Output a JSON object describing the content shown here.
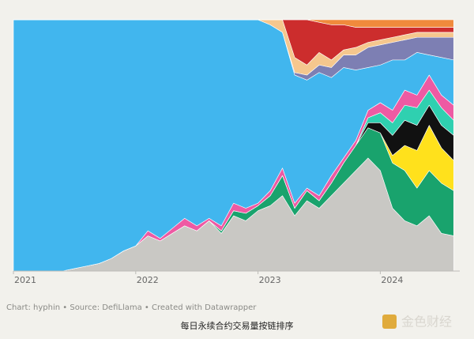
{
  "chart_data": {
    "type": "area",
    "stacked": true,
    "x": [
      2021.0,
      2021.1,
      2021.2,
      2021.3,
      2021.4,
      2021.5,
      2021.6,
      2021.7,
      2021.8,
      2021.9,
      2022.0,
      2022.1,
      2022.2,
      2022.3,
      2022.4,
      2022.5,
      2022.6,
      2022.7,
      2022.8,
      2022.9,
      2023.0,
      2023.1,
      2023.2,
      2023.3,
      2023.4,
      2023.5,
      2023.6,
      2023.7,
      2023.8,
      2023.9,
      2024.0,
      2024.1,
      2024.2,
      2024.3,
      2024.4,
      2024.5,
      2024.6
    ],
    "xlim": [
      2021,
      2024.65
    ],
    "xticks": [
      2021,
      2022,
      2023,
      2024
    ],
    "ylim": [
      0,
      100
    ],
    "series": [
      {
        "color": "#c9c8c4",
        "values": [
          0,
          0,
          0,
          0,
          0,
          1,
          2,
          3,
          5,
          8,
          10,
          14,
          12,
          15,
          18,
          16,
          20,
          15,
          22,
          20,
          24,
          26,
          30,
          22,
          28,
          25,
          30,
          35,
          40,
          45,
          40,
          25,
          20,
          18,
          22,
          15,
          14
        ]
      },
      {
        "color": "#19a36d",
        "values": [
          0,
          0,
          0,
          0,
          0,
          0,
          0,
          0,
          0,
          0,
          0,
          0,
          0,
          0,
          0,
          0,
          0,
          1,
          2,
          3,
          2,
          4,
          8,
          3,
          4,
          3,
          5,
          8,
          10,
          12,
          15,
          18,
          20,
          15,
          18,
          20,
          18
        ]
      },
      {
        "color": "#ffe11c",
        "values": [
          0,
          0,
          0,
          0,
          0,
          0,
          0,
          0,
          0,
          0,
          0,
          0,
          0,
          0,
          0,
          0,
          0,
          0,
          0,
          0,
          0,
          0,
          0,
          0,
          0,
          0,
          0,
          0,
          0,
          0,
          0,
          3,
          10,
          15,
          18,
          14,
          12
        ]
      },
      {
        "color": "#111111",
        "values": [
          0,
          0,
          0,
          0,
          0,
          0,
          0,
          0,
          0,
          0,
          0,
          0,
          0,
          0,
          0,
          0,
          0,
          0,
          0,
          0,
          0,
          0,
          0,
          0,
          0,
          0,
          0,
          0,
          0,
          2,
          4,
          8,
          10,
          10,
          8,
          9,
          10
        ]
      },
      {
        "color": "#2fd0b0",
        "values": [
          0,
          0,
          0,
          0,
          0,
          0,
          0,
          0,
          0,
          0,
          0,
          0,
          0,
          0,
          0,
          0,
          0,
          0,
          0,
          0,
          0,
          0,
          0,
          0,
          0,
          0,
          0,
          0,
          0,
          2,
          4,
          5,
          6,
          7,
          6,
          7,
          6
        ]
      },
      {
        "color": "#ee5aa3",
        "values": [
          0,
          0,
          0,
          0,
          0,
          0,
          0,
          0,
          0,
          0,
          0,
          2,
          1,
          2,
          3,
          2,
          1,
          2,
          3,
          2,
          1,
          2,
          3,
          2,
          1,
          2,
          3,
          2,
          2,
          3,
          4,
          5,
          6,
          5,
          6,
          5,
          6
        ]
      },
      {
        "color": "#41b6ee",
        "values": [
          100,
          100,
          100,
          100,
          100,
          99,
          98,
          97,
          95,
          92,
          90,
          84,
          87,
          83,
          79,
          82,
          79,
          82,
          73,
          75,
          73,
          66,
          54,
          51,
          43,
          49,
          39,
          36,
          28,
          17,
          15,
          20,
          12,
          17,
          8,
          15,
          18
        ]
      },
      {
        "color": "#7d7fb3",
        "values": [
          0,
          0,
          0,
          0,
          0,
          0,
          0,
          0,
          0,
          0,
          0,
          0,
          0,
          0,
          0,
          0,
          0,
          0,
          0,
          0,
          0,
          0,
          0,
          1,
          2,
          3,
          4,
          5,
          6,
          8,
          8,
          7,
          8,
          6,
          7,
          8,
          9
        ]
      },
      {
        "color": "#f5c78e",
        "values": [
          0,
          0,
          0,
          0,
          0,
          0,
          0,
          0,
          0,
          0,
          0,
          0,
          0,
          0,
          0,
          0,
          0,
          0,
          0,
          0,
          0,
          2,
          5,
          6,
          4,
          5,
          3,
          2,
          3,
          2,
          2,
          2,
          2,
          2,
          2,
          2,
          2
        ]
      },
      {
        "color": "#cc2d2d",
        "values": [
          0,
          0,
          0,
          0,
          0,
          0,
          0,
          0,
          0,
          0,
          0,
          0,
          0,
          0,
          0,
          0,
          0,
          0,
          0,
          0,
          0,
          0,
          0,
          15,
          18,
          12,
          14,
          10,
          8,
          6,
          5,
          4,
          3,
          2,
          2,
          2,
          2
        ]
      },
      {
        "color": "#f08a3c",
        "values": [
          0,
          0,
          0,
          0,
          0,
          0,
          0,
          0,
          0,
          0,
          0,
          0,
          0,
          0,
          0,
          0,
          0,
          0,
          0,
          0,
          0,
          0,
          0,
          0,
          0,
          1,
          2,
          2,
          3,
          3,
          3,
          3,
          3,
          3,
          3,
          3,
          3
        ]
      }
    ],
    "source": "Chart: hyphin • Source: DefiLlama • Created with Datawrapper",
    "caption": "每日永续合约交易量按链排序",
    "watermark": "金色财经"
  }
}
